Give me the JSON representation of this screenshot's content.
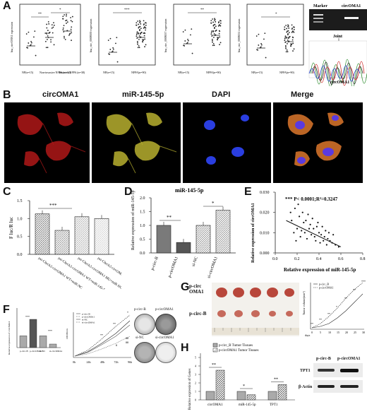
{
  "panels": {
    "A": "A",
    "B": "B",
    "C": "C",
    "D": "D",
    "E": "E",
    "F": "F",
    "G": "G",
    "H": "H"
  },
  "panelA": {
    "plots": [
      {
        "ylabel": "hsa_circOMA1 expression",
        "cats": [
          "NP(n=15)",
          "Non-invasive NFPA (n=32)",
          "Invasive NFPA (n=38)"
        ],
        "sig": [
          "**",
          "*"
        ],
        "means": [
          0.35,
          0.55,
          0.7
        ]
      },
      {
        "ylabel": "hsa_circ_0008959 expression",
        "cats": [
          "NP(n=15)",
          "NFPA(n=90)"
        ],
        "sig": [
          "***"
        ],
        "means": [
          0.2,
          0.55
        ]
      },
      {
        "ylabel": "hsa_circ_0008057 expression",
        "cats": [
          "NP(n=15)",
          "NFPA(n=90)"
        ],
        "sig": [
          "**"
        ],
        "means": [
          0.4,
          0.6
        ]
      },
      {
        "ylabel": "hsa_circ_0008051 expression",
        "cats": [
          "NP(n=15)",
          "NFPA(n=90)"
        ],
        "sig": [
          "*"
        ],
        "means": [
          0.3,
          0.45
        ]
      }
    ],
    "gel": {
      "marker": "Marker",
      "target": "circOMA1",
      "joint": "Joint",
      "chromatogram_label": "circOMA1"
    }
  },
  "panelB": {
    "labels": [
      "circOMA1",
      "miR-145-5p",
      "DAPI",
      "Merge"
    ],
    "colors": [
      "#c0201c",
      "#c8c040",
      "#2438d8",
      "#e07a2c"
    ]
  },
  "panelC": {
    "ylabel": "F luc/R luc",
    "sig": "***",
    "chart_data": {
      "type": "bar",
      "categories": [
        "psi-Check2-circOMA1 WT+miR-NC",
        "psi-Check2-circOMA1 WT+miR-145-5p",
        "psi-Check2-circOMA1 MU+miR-NC",
        "psi-Check2-circOMA1 MU+miR-145-5p"
      ],
      "values": [
        1.13,
        0.67,
        1.05,
        1.0
      ],
      "ylim": [
        0,
        1.5
      ],
      "ticks": [
        "0.0",
        "0.5",
        "1.0",
        "1.5"
      ]
    }
  },
  "panelD": {
    "title": "miR-145-5p",
    "ylabel": "Relative expression of miR-145-5p",
    "sig": [
      "**",
      "*"
    ],
    "chart_data": {
      "type": "bar",
      "categories": [
        "p-circ-B",
        "p-circOMA1",
        "si-NC",
        "si-circOMA1"
      ],
      "values": [
        1.0,
        0.38,
        1.0,
        1.55
      ],
      "ylim": [
        0,
        2.0
      ],
      "ticks": [
        "0.0",
        "0.5",
        "1.0",
        "1.5",
        "2.0"
      ]
    }
  },
  "panelE": {
    "annotation": "*** P< 0.0001;R²=0.3247",
    "xlabel": "Relative expression of miR-145-5p",
    "ylabel": "Relative expression of circOMA1",
    "chart_data": {
      "type": "scatter",
      "xlim": [
        0.0,
        0.8
      ],
      "ylim": [
        0.0,
        0.03
      ],
      "xticks": [
        "0.0",
        "0.2",
        "0.4",
        "0.6",
        "0.8"
      ],
      "yticks": [
        "0.000",
        "0.010",
        "0.020",
        "0.030"
      ],
      "points": [
        [
          0.18,
          0.022
        ],
        [
          0.22,
          0.018
        ],
        [
          0.25,
          0.02
        ],
        [
          0.28,
          0.016
        ],
        [
          0.3,
          0.019
        ],
        [
          0.32,
          0.014
        ],
        [
          0.35,
          0.012
        ],
        [
          0.38,
          0.013
        ],
        [
          0.4,
          0.01
        ],
        [
          0.42,
          0.009
        ],
        [
          0.45,
          0.008
        ],
        [
          0.48,
          0.007
        ],
        [
          0.5,
          0.006
        ],
        [
          0.2,
          0.012
        ],
        [
          0.24,
          0.011
        ],
        [
          0.27,
          0.01
        ],
        [
          0.33,
          0.009
        ],
        [
          0.36,
          0.008
        ],
        [
          0.44,
          0.006
        ],
        [
          0.52,
          0.005
        ],
        [
          0.55,
          0.004
        ],
        [
          0.15,
          0.016
        ],
        [
          0.17,
          0.01
        ],
        [
          0.23,
          0.008
        ],
        [
          0.29,
          0.007
        ],
        [
          0.31,
          0.012
        ],
        [
          0.39,
          0.015
        ],
        [
          0.41,
          0.005
        ],
        [
          0.46,
          0.011
        ],
        [
          0.58,
          0.003
        ],
        [
          0.14,
          0.02
        ],
        [
          0.26,
          0.015
        ],
        [
          0.34,
          0.017
        ],
        [
          0.47,
          0.004
        ],
        [
          0.53,
          0.009
        ],
        [
          0.21,
          0.024
        ],
        [
          0.19,
          0.006
        ],
        [
          0.37,
          0.006
        ],
        [
          0.43,
          0.013
        ],
        [
          0.49,
          0.01
        ]
      ],
      "fit": [
        [
          0.1,
          0.016
        ],
        [
          0.6,
          0.003
        ]
      ]
    }
  },
  "panelF": {
    "bar": {
      "ylabel": "Relative expression of circOMA1",
      "categories": [
        "p-circ-B",
        "p-circOMA1",
        "si-NC",
        "si-circOMA1"
      ],
      "values": [
        1.0,
        2.4,
        1.0,
        0.3
      ],
      "sig": [
        "***",
        "***"
      ]
    },
    "line": {
      "ylabel": "OD450nm",
      "xticks": [
        "0h",
        "24h",
        "48h",
        "72h",
        "96h"
      ],
      "legend": [
        "p-circ-B",
        "p-circOMA1",
        "si-NC",
        "si-circOMA1"
      ],
      "sig": [
        "**",
        "**",
        "*",
        "#",
        "##",
        "##"
      ]
    },
    "colony_labels": [
      "p-circ-B",
      "p-circOMA1",
      "si-NC",
      "si-circOMA1"
    ]
  },
  "panelG": {
    "rows": [
      "p-circ OMA1",
      "p-circ-B"
    ],
    "row1a": "p-circ",
    "row1b": "OMA1",
    "ylabel": "Tumor volume(mm³)",
    "xlabel": "days",
    "xticks": [
      "0",
      "5",
      "10",
      "15",
      "20",
      "25",
      "30"
    ],
    "legend": [
      "p-circ_B",
      "p-circOMA1"
    ],
    "sig": [
      "**",
      "**",
      "**",
      "*",
      "**",
      "**",
      "***"
    ]
  },
  "panelH": {
    "ylabel": "Relative expression of Genes",
    "legend": [
      "p-circ_B Tumor Tissues",
      "p-circOMA1 Tumor Tissues"
    ],
    "categories": [
      "circOMA1",
      "miR-145-5p",
      "TPT1"
    ],
    "sig": [
      "**",
      "*",
      "**"
    ],
    "chart_data": {
      "type": "bar",
      "categories": [
        "circOMA1",
        "miR-145-5p",
        "TPT1"
      ],
      "series": [
        {
          "name": "p-circ_B Tumor Tissues",
          "values": [
            1.0,
            1.0,
            1.0
          ]
        },
        {
          "name": "p-circOMA1 Tumor Tissues",
          "values": [
            3.5,
            0.6,
            1.8
          ]
        }
      ],
      "ylim": [
        0,
        5
      ],
      "ticks": [
        "0",
        "1",
        "2",
        "3",
        "4",
        "5"
      ]
    },
    "wb": {
      "cols": [
        "p-circ-B",
        "p-circOMA1"
      ],
      "rows": [
        "TPT1",
        "β-Actin"
      ]
    }
  }
}
